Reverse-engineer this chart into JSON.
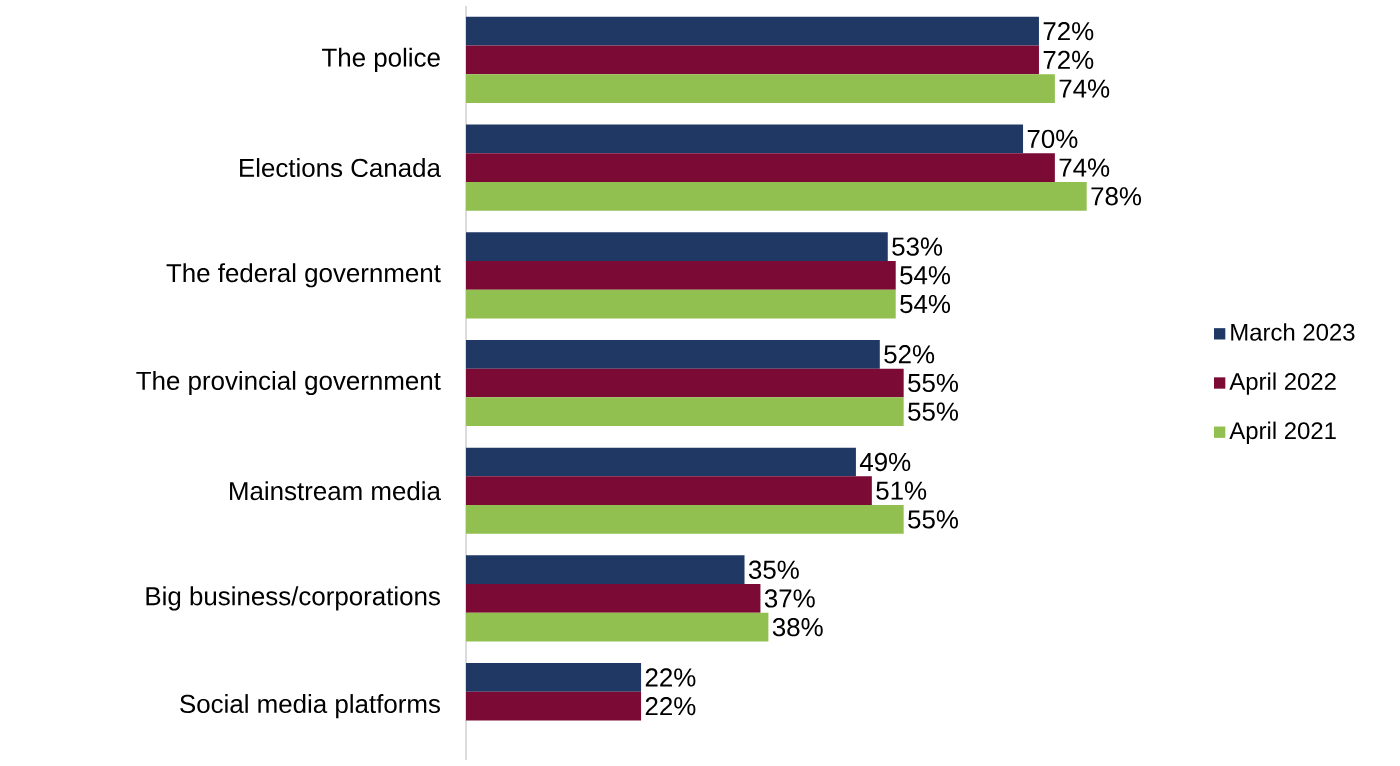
{
  "chart_data": {
    "type": "bar",
    "orientation": "horizontal",
    "legend": "right",
    "categories": [
      "The police",
      "Elections Canada",
      "The federal government",
      "The provincial government",
      "Mainstream media",
      "Big business/corporations",
      "Social media platforms"
    ],
    "series": [
      {
        "name": "March 2023",
        "color": "#203864",
        "values": [
          72,
          70,
          53,
          52,
          49,
          35,
          22
        ],
        "value_labels": [
          "72%",
          "70%",
          "53%",
          "52%",
          "49%",
          "35%",
          "22%"
        ]
      },
      {
        "name": "April 2022",
        "color": "#7b0a35",
        "values": [
          72,
          74,
          54,
          55,
          51,
          37,
          22
        ],
        "value_labels": [
          "72%",
          "74%",
          "54%",
          "55%",
          "51%",
          "37%",
          "22%"
        ]
      },
      {
        "name": "April 2021",
        "color": "#92c050",
        "values": [
          74,
          78,
          54,
          55,
          55,
          38,
          null
        ],
        "value_labels": [
          "74%",
          "78%",
          "54%",
          "55%",
          "55%",
          "38%",
          null
        ]
      }
    ]
  }
}
